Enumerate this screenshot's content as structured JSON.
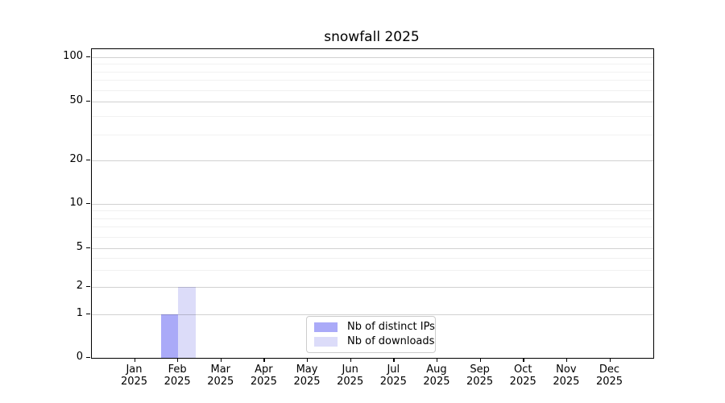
{
  "title": "snowfall 2025",
  "colors": {
    "distinct_ips": "#aaaaf8",
    "downloads": "#dcdcf9",
    "axis": "#000000",
    "legend_border": "#cccccc",
    "background": "#ffffff"
  },
  "legend": {
    "items": [
      {
        "label": "Nb of distinct IPs"
      },
      {
        "label": "Nb of downloads"
      }
    ]
  },
  "chart_data": {
    "type": "bar",
    "title": "snowfall 2025",
    "categories": [
      "Jan 2025",
      "Feb 2025",
      "Mar 2025",
      "Apr 2025",
      "May 2025",
      "Jun 2025",
      "Jul 2025",
      "Aug 2025",
      "Sep 2025",
      "Oct 2025",
      "Nov 2025",
      "Dec 2025"
    ],
    "series": [
      {
        "name": "Nb of distinct IPs",
        "color": "#aaaaf8",
        "values": [
          0,
          1,
          0,
          0,
          0,
          0,
          0,
          0,
          0,
          0,
          0,
          0
        ]
      },
      {
        "name": "Nb of downloads",
        "color": "#dcdcf9",
        "values": [
          0,
          2,
          0,
          0,
          0,
          0,
          0,
          0,
          0,
          0,
          0,
          0
        ]
      }
    ],
    "xlabel": "",
    "ylabel": "",
    "yscale": "symlog",
    "y_ticks": [
      0,
      1,
      2,
      5,
      10,
      20,
      50,
      100
    ],
    "y_minor_ticks": [
      3,
      4,
      6,
      7,
      8,
      9,
      30,
      40,
      60,
      70,
      80,
      90
    ],
    "ylim": [
      0,
      110
    ],
    "grid": "both",
    "legend_position": "lower center"
  }
}
